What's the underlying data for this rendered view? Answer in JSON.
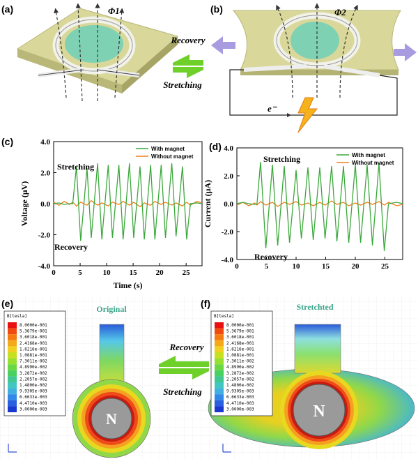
{
  "panels": {
    "a": "(a)",
    "b": "(b)",
    "c": "(c)",
    "d": "(d)",
    "e": "(e)",
    "f": "(f)"
  },
  "top": {
    "phi1": "Φ1",
    "phi2": "Φ2",
    "recovery": "Recovery",
    "stretching": "Stretching",
    "electron": "e⁻"
  },
  "bottom": {
    "original": "Original",
    "stretched": "Stretchted",
    "recovery": "Recovery",
    "stretching": "Stretching",
    "pole_e": "N",
    "pole_f": "N"
  },
  "colorbar_e": {
    "title": "B[tesla]",
    "levels": [
      "8.0000e-001",
      "5.3679e-001",
      "3.6018e-001",
      "2.4168e-001",
      "1.6216e-001",
      "1.0881e-001",
      "7.3011e-002",
      "4.8990e-002",
      "3.2872e-002",
      "2.2057e-002",
      "1.4800e-002",
      "9.9305e-003",
      "6.6633e-003",
      "4.4710e-003",
      "3.0000e-003"
    ]
  },
  "colorbar_f": {
    "title": "B[tesla]",
    "levels": [
      "8.0000e-001",
      "5.3679e-001",
      "3.6018e-001",
      "2.4168e-001",
      "1.6216e-001",
      "1.0881e-001",
      "7.3011e-002",
      "4.8990e-002",
      "3.2872e-002",
      "2.2057e-002",
      "1.4800e-002",
      "9.9305e-003",
      "6.6633e-003",
      "4.4710e-003",
      "3.0000e-003"
    ]
  },
  "chart_data": [
    {
      "type": "line",
      "xlabel": "Time (s)",
      "ylabel": "Voltage (μV)",
      "annotations": [
        "Stretching",
        "Recovery"
      ],
      "x": [
        0,
        1,
        2,
        3,
        3.6,
        4.3,
        5.1,
        6.3,
        7.1,
        8.3,
        9.1,
        10.3,
        11.1,
        12.3,
        13.1,
        14.3,
        15.1,
        16.3,
        17.1,
        18.3,
        19.1,
        20.3,
        21.1,
        22.3,
        23.1,
        24.3,
        25.1,
        25.8,
        27,
        28
      ],
      "series": [
        {
          "name": "With magnet",
          "color": "#3aa83a",
          "values": [
            0,
            0.05,
            -0.05,
            0,
            0,
            2.4,
            -2.4,
            2.3,
            -2.2,
            2.6,
            -2.3,
            2.5,
            -2.2,
            2.5,
            -2.3,
            2.6,
            -2.2,
            2.4,
            -2.3,
            2.5,
            -2.3,
            2.5,
            -2.2,
            2.6,
            -2.1,
            2.4,
            -2.3,
            0,
            0.05,
            0
          ]
        },
        {
          "name": "Without magnet",
          "color": "#f07f1e",
          "values": [
            0.1,
            -0.1,
            0.15,
            -0.05,
            0.1,
            -0.15,
            0.1,
            -0.1,
            0.2,
            -0.1,
            0.05,
            -0.15,
            0.1,
            -0.05,
            0.15,
            -0.1,
            0.1,
            -0.2,
            0.05,
            -0.1,
            0.15,
            -0.05,
            0.1,
            -0.1,
            0.05,
            -0.15,
            0.1,
            -0.1,
            0.15,
            0.05
          ]
        }
      ],
      "xlim": [
        0,
        28
      ],
      "xticks": [
        0,
        5,
        10,
        15,
        20,
        25
      ],
      "ylim": [
        -4,
        4
      ],
      "yticks": [
        {
          "value": -4,
          "label": "-4.0"
        },
        {
          "value": -2,
          "label": "-2.0"
        },
        {
          "value": 0,
          "label": "0.0"
        },
        {
          "value": 2,
          "label": "2.0"
        },
        {
          "value": 4,
          "label": "4.0"
        }
      ],
      "legend": "upper right"
    },
    {
      "type": "line",
      "ylabel": "Current (μA)",
      "annotations": [
        "Stretching",
        "Recovery"
      ],
      "x": [
        0,
        1,
        2,
        3,
        3.4,
        4.0,
        4.9,
        6.0,
        6.9,
        8.0,
        8.9,
        10.0,
        10.9,
        12.0,
        12.9,
        14.0,
        14.9,
        16.0,
        16.9,
        18.0,
        18.9,
        20.0,
        20.9,
        22.0,
        22.9,
        24.0,
        24.9,
        25.6,
        27,
        28
      ],
      "series": [
        {
          "name": "With magnet",
          "color": "#3aa83a",
          "values": [
            0,
            0.1,
            0,
            -0.05,
            0,
            3.0,
            -3.2,
            2.8,
            -3.0,
            2.7,
            -2.8,
            2.4,
            -2.5,
            2.6,
            -2.6,
            2.6,
            -2.5,
            2.7,
            -2.7,
            2.7,
            -2.8,
            2.8,
            -2.8,
            2.8,
            -3.0,
            2.9,
            -3.4,
            0,
            0.1,
            0
          ]
        },
        {
          "name": "Without magnet",
          "color": "#f07f1e",
          "values": [
            -0.1,
            0.1,
            -0.15,
            0.05,
            -0.1,
            0.15,
            -0.1,
            0.1,
            -0.2,
            0.1,
            -0.05,
            0.15,
            -0.1,
            0.05,
            -0.15,
            0.1,
            -0.1,
            0.2,
            -0.05,
            0.1,
            -0.15,
            0.05,
            -0.1,
            0.1,
            -0.05,
            0.15,
            -0.1,
            0.1,
            -0.15,
            -0.05
          ]
        }
      ],
      "xlim": [
        0,
        28
      ],
      "xticks": [
        0,
        5,
        10,
        15,
        20,
        25
      ],
      "ylim": [
        -4,
        4
      ],
      "yticks": [
        {
          "value": -4,
          "label": "-4.0"
        },
        {
          "value": -2,
          "label": "-2.0"
        },
        {
          "value": 0,
          "label": "0.0"
        },
        {
          "value": 2,
          "label": "2.0"
        },
        {
          "value": 4,
          "label": "4.0"
        }
      ],
      "legend": "upper right"
    }
  ]
}
